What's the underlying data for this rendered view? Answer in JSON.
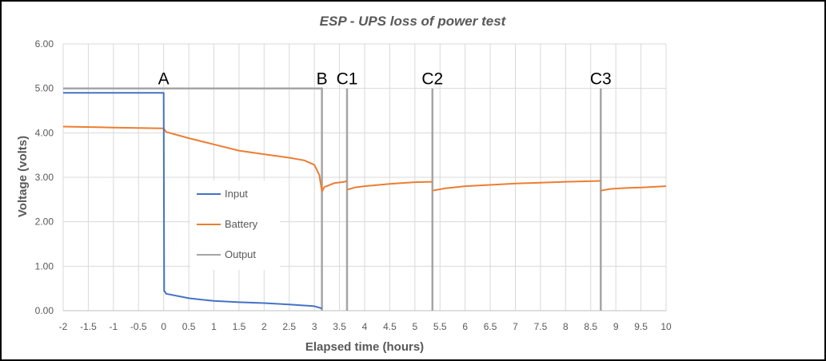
{
  "chart_data": {
    "type": "line",
    "title": "ESP - UPS loss of power test",
    "xlabel": "Elapsed time (hours)",
    "ylabel": "Voltage (volts)",
    "xlim": [
      -2,
      10
    ],
    "ylim": [
      0,
      6
    ],
    "x_ticks": [
      -2,
      -1.5,
      -1,
      -0.5,
      0,
      0.5,
      1,
      1.5,
      2,
      2.5,
      3,
      3.5,
      4,
      4.5,
      5,
      5.5,
      6,
      6.5,
      7,
      7.5,
      8,
      8.5,
      9,
      9.5,
      10
    ],
    "x_tick_labels": [
      "-2",
      "-1.5",
      "-1",
      "-0.5",
      "0",
      "0.5",
      "1",
      "1.5",
      "2",
      "2.5",
      "3",
      "3.5",
      "4",
      "4.5",
      "5",
      "5.5",
      "6",
      "6.5",
      "7",
      "7.5",
      "8",
      "8.5",
      "9",
      "9.5",
      "10"
    ],
    "y_ticks": [
      0,
      1,
      2,
      3,
      4,
      5,
      6
    ],
    "y_tick_labels": [
      "0.00",
      "1.00",
      "2.00",
      "3.00",
      "4.00",
      "5.00",
      "6.00"
    ],
    "grid": true,
    "legend_position": "center-left",
    "series": [
      {
        "name": "Input",
        "color": "#4472C4",
        "points": [
          [
            -2,
            4.9
          ],
          [
            0,
            4.9
          ],
          [
            0.01,
            0.45
          ],
          [
            0.05,
            0.38
          ],
          [
            0.5,
            0.28
          ],
          [
            1,
            0.22
          ],
          [
            1.5,
            0.19
          ],
          [
            2,
            0.17
          ],
          [
            2.5,
            0.14
          ],
          [
            3,
            0.1
          ],
          [
            3.15,
            0.05
          ]
        ]
      },
      {
        "name": "Battery",
        "color": "#ED7D31",
        "segments": [
          [
            [
              -2,
              4.14
            ],
            [
              -1,
              4.12
            ],
            [
              0,
              4.1
            ],
            [
              0.05,
              4.02
            ],
            [
              0.5,
              3.88
            ],
            [
              1,
              3.74
            ],
            [
              1.5,
              3.6
            ],
            [
              2,
              3.52
            ],
            [
              2.5,
              3.44
            ],
            [
              2.8,
              3.38
            ],
            [
              3,
              3.28
            ],
            [
              3.1,
              3.05
            ],
            [
              3.15,
              2.68
            ],
            [
              3.2,
              2.78
            ],
            [
              3.4,
              2.87
            ],
            [
              3.6,
              2.9
            ],
            [
              3.65,
              2.92
            ]
          ],
          [
            [
              3.65,
              2.72
            ],
            [
              3.8,
              2.77
            ],
            [
              4,
              2.8
            ],
            [
              4.5,
              2.85
            ],
            [
              5,
              2.89
            ],
            [
              5.35,
              2.9
            ]
          ],
          [
            [
              5.35,
              2.7
            ],
            [
              5.6,
              2.75
            ],
            [
              6,
              2.8
            ],
            [
              6.5,
              2.83
            ],
            [
              7,
              2.86
            ],
            [
              7.5,
              2.88
            ],
            [
              8,
              2.9
            ],
            [
              8.7,
              2.92
            ]
          ],
          [
            [
              8.7,
              2.7
            ],
            [
              8.9,
              2.74
            ],
            [
              9.2,
              2.76
            ],
            [
              9.5,
              2.77
            ],
            [
              10,
              2.8
            ]
          ]
        ]
      },
      {
        "name": "Output",
        "color": "#A5A5A5",
        "segments": [
          [
            [
              -2,
              5.0
            ],
            [
              3.15,
              5.0
            ],
            [
              3.15,
              0.0
            ]
          ],
          [
            [
              3.65,
              5.0
            ],
            [
              3.65,
              0.0
            ]
          ],
          [
            [
              5.35,
              5.0
            ],
            [
              5.35,
              0.0
            ]
          ],
          [
            [
              8.7,
              5.0
            ],
            [
              8.7,
              0.0
            ]
          ]
        ]
      }
    ],
    "annotations": [
      {
        "text": "A",
        "x": 0
      },
      {
        "text": "B",
        "x": 3.15
      },
      {
        "text": "C1",
        "x": 3.65
      },
      {
        "text": "C2",
        "x": 5.35
      },
      {
        "text": "C3",
        "x": 8.7
      }
    ]
  }
}
